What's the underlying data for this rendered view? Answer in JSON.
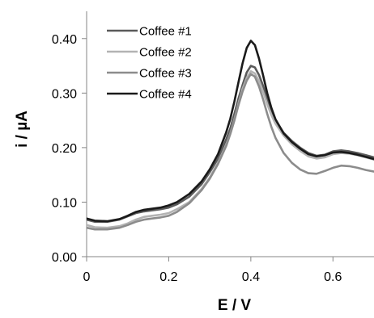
{
  "chart_data": {
    "type": "line",
    "title": "",
    "xlabel": "E / V",
    "ylabel": "i / µA",
    "xlim": [
      0,
      0.7
    ],
    "ylim": [
      0,
      0.45
    ],
    "x_ticks": [
      0,
      0.2,
      0.4,
      0.6
    ],
    "x_tick_labels": [
      "0",
      "0.2",
      "0.4",
      "0.6"
    ],
    "y_ticks": [
      0,
      0.1,
      0.2,
      0.3,
      0.4
    ],
    "y_tick_labels": [
      "0.00",
      "0.10",
      "0.20",
      "0.30",
      "0.40"
    ],
    "grid": false,
    "legend_position": "top-left",
    "series": [
      {
        "name": "Coffee #1",
        "color": "#5a5a5a",
        "x": [
          0,
          0.02,
          0.05,
          0.08,
          0.1,
          0.12,
          0.14,
          0.16,
          0.18,
          0.2,
          0.22,
          0.25,
          0.28,
          0.3,
          0.32,
          0.34,
          0.35,
          0.36,
          0.37,
          0.38,
          0.39,
          0.4,
          0.41,
          0.42,
          0.43,
          0.44,
          0.45,
          0.46,
          0.48,
          0.5,
          0.52,
          0.54,
          0.56,
          0.58,
          0.6,
          0.62,
          0.64,
          0.66,
          0.68,
          0.7
        ],
        "y": [
          0.068,
          0.064,
          0.064,
          0.068,
          0.074,
          0.08,
          0.083,
          0.085,
          0.087,
          0.09,
          0.096,
          0.11,
          0.133,
          0.155,
          0.18,
          0.215,
          0.235,
          0.262,
          0.29,
          0.315,
          0.338,
          0.35,
          0.347,
          0.333,
          0.313,
          0.29,
          0.268,
          0.25,
          0.227,
          0.212,
          0.2,
          0.19,
          0.185,
          0.187,
          0.193,
          0.195,
          0.193,
          0.19,
          0.186,
          0.182
        ]
      },
      {
        "name": "Coffee #2",
        "color": "#b3b3b3",
        "x": [
          0,
          0.02,
          0.05,
          0.08,
          0.1,
          0.12,
          0.14,
          0.16,
          0.18,
          0.2,
          0.22,
          0.25,
          0.28,
          0.3,
          0.32,
          0.34,
          0.35,
          0.36,
          0.37,
          0.38,
          0.39,
          0.4,
          0.41,
          0.42,
          0.43,
          0.44,
          0.45,
          0.46,
          0.48,
          0.5,
          0.52,
          0.54,
          0.56,
          0.58,
          0.6,
          0.62,
          0.64,
          0.66,
          0.68,
          0.7
        ],
        "y": [
          0.058,
          0.054,
          0.053,
          0.056,
          0.061,
          0.068,
          0.073,
          0.075,
          0.077,
          0.08,
          0.087,
          0.1,
          0.124,
          0.145,
          0.172,
          0.205,
          0.226,
          0.252,
          0.281,
          0.308,
          0.328,
          0.34,
          0.336,
          0.322,
          0.302,
          0.28,
          0.26,
          0.244,
          0.222,
          0.206,
          0.194,
          0.184,
          0.18,
          0.182,
          0.188,
          0.19,
          0.189,
          0.186,
          0.182,
          0.178
        ]
      },
      {
        "name": "Coffee #3",
        "color": "#8c8c8c",
        "x": [
          0,
          0.02,
          0.05,
          0.08,
          0.1,
          0.12,
          0.14,
          0.16,
          0.18,
          0.2,
          0.22,
          0.25,
          0.28,
          0.3,
          0.32,
          0.34,
          0.35,
          0.36,
          0.37,
          0.38,
          0.39,
          0.4,
          0.41,
          0.42,
          0.43,
          0.44,
          0.45,
          0.46,
          0.48,
          0.5,
          0.52,
          0.54,
          0.56,
          0.58,
          0.6,
          0.62,
          0.64,
          0.66,
          0.68,
          0.7
        ],
        "y": [
          0.053,
          0.05,
          0.05,
          0.053,
          0.058,
          0.064,
          0.068,
          0.07,
          0.072,
          0.075,
          0.082,
          0.098,
          0.122,
          0.143,
          0.17,
          0.203,
          0.225,
          0.25,
          0.278,
          0.303,
          0.323,
          0.335,
          0.33,
          0.312,
          0.288,
          0.262,
          0.238,
          0.218,
          0.19,
          0.172,
          0.16,
          0.153,
          0.152,
          0.157,
          0.163,
          0.167,
          0.166,
          0.163,
          0.159,
          0.156
        ]
      },
      {
        "name": "Coffee #4",
        "color": "#1a1a1a",
        "x": [
          0,
          0.02,
          0.05,
          0.08,
          0.1,
          0.12,
          0.14,
          0.16,
          0.18,
          0.2,
          0.22,
          0.25,
          0.28,
          0.3,
          0.32,
          0.34,
          0.35,
          0.36,
          0.37,
          0.38,
          0.39,
          0.4,
          0.41,
          0.42,
          0.43,
          0.44,
          0.45,
          0.46,
          0.48,
          0.5,
          0.52,
          0.54,
          0.56,
          0.58,
          0.6,
          0.62,
          0.64,
          0.66,
          0.68,
          0.7
        ],
        "y": [
          0.07,
          0.066,
          0.065,
          0.069,
          0.075,
          0.082,
          0.086,
          0.088,
          0.09,
          0.094,
          0.1,
          0.115,
          0.138,
          0.16,
          0.188,
          0.228,
          0.253,
          0.285,
          0.32,
          0.355,
          0.383,
          0.396,
          0.388,
          0.363,
          0.332,
          0.3,
          0.273,
          0.252,
          0.226,
          0.21,
          0.198,
          0.188,
          0.184,
          0.186,
          0.191,
          0.192,
          0.19,
          0.187,
          0.183,
          0.179
        ]
      }
    ]
  }
}
